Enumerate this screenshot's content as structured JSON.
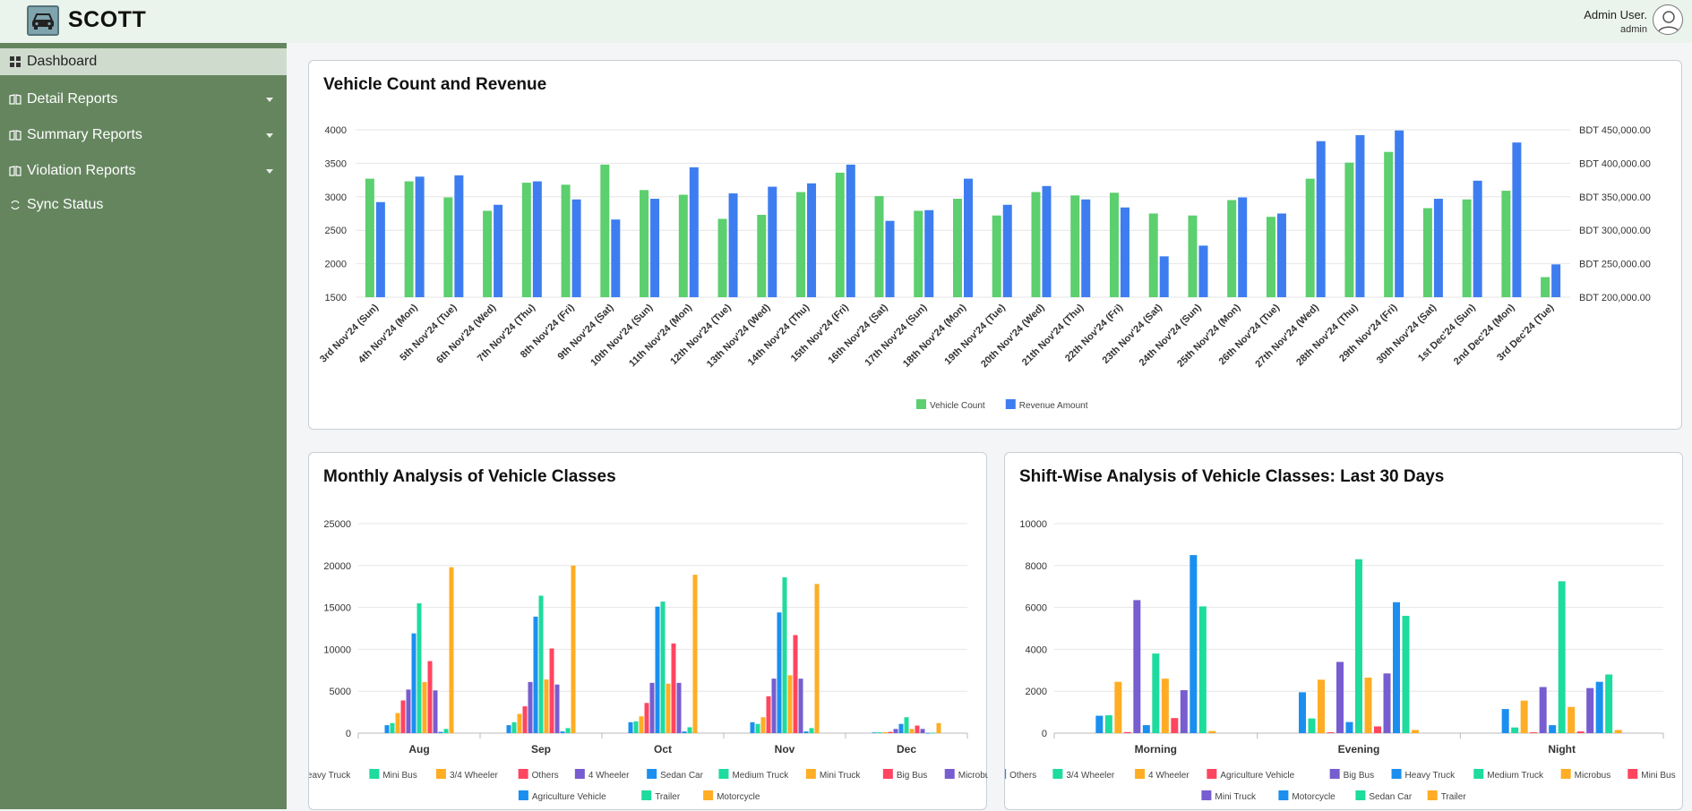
{
  "app": {
    "brand": "SCOTT"
  },
  "user": {
    "name": "Admin User.",
    "role": "admin"
  },
  "sidebar": {
    "items": [
      {
        "label": "Dashboard",
        "icon": "dashboard-icon",
        "active": true
      },
      {
        "label": "Detail Reports",
        "icon": "book-icon",
        "expandable": true
      },
      {
        "label": "Summary Reports",
        "icon": "book-icon",
        "expandable": true
      },
      {
        "label": "Violation Reports",
        "icon": "book-icon",
        "expandable": true
      },
      {
        "label": "Sync Status",
        "icon": "sync-icon"
      }
    ]
  },
  "charts": {
    "revenue": {
      "title": "Vehicle Count and Revenue"
    },
    "monthly": {
      "title": "Monthly Analysis of Vehicle Classes"
    },
    "shift": {
      "title": "Shift-Wise Analysis of Vehicle Classes: Last 30 Days"
    }
  },
  "chart_data": [
    {
      "type": "bar",
      "title": "Vehicle Count and Revenue",
      "categories": [
        "3rd Nov'24 (Sun)",
        "4th Nov'24 (Mon)",
        "5th Nov'24 (Tue)",
        "6th Nov'24 (Wed)",
        "7th Nov'24 (Thu)",
        "8th Nov'24 (Fri)",
        "9th Nov'24 (Sat)",
        "10th Nov'24 (Sun)",
        "11th Nov'24 (Mon)",
        "12th Nov'24 (Tue)",
        "13th Nov'24 (Wed)",
        "14th Nov'24 (Thu)",
        "15th Nov'24 (Fri)",
        "16th Nov'24 (Sat)",
        "17th Nov'24 (Sun)",
        "18th Nov'24 (Mon)",
        "19th Nov'24 (Tue)",
        "20th Nov'24 (Wed)",
        "21th Nov'24 (Thu)",
        "22th Nov'24 (Fri)",
        "23th Nov'24 (Sat)",
        "24th Nov'24 (Sun)",
        "25th Nov'24 (Mon)",
        "26th Nov'24 (Tue)",
        "27th Nov'24 (Wed)",
        "28th Nov'24 (Thu)",
        "29th Nov'24 (Fri)",
        "30th Nov'24 (Sat)",
        "1st Dec'24 (Sun)",
        "2nd Dec'24 (Mon)",
        "3rd Dec'24 (Tue)"
      ],
      "series": [
        {
          "name": "Vehicle Count",
          "axis": "left",
          "color": "#5ccf6e",
          "values": [
            3270,
            3230,
            2990,
            2790,
            3210,
            3180,
            3480,
            3100,
            3030,
            2670,
            2730,
            3070,
            3360,
            3010,
            2790,
            2970,
            2720,
            3070,
            3020,
            3060,
            2750,
            2720,
            2950,
            2700,
            3270,
            3510,
            3670,
            2830,
            2960,
            3090,
            1800
          ]
        },
        {
          "name": "Revenue Amount",
          "axis": "right",
          "color": "#3d7df0",
          "values": [
            342000,
            380000,
            382000,
            338000,
            373000,
            346000,
            316000,
            347000,
            394000,
            355000,
            365000,
            370000,
            398000,
            314000,
            330000,
            377000,
            338000,
            366000,
            346000,
            334000,
            261000,
            277000,
            349000,
            325000,
            433000,
            442000,
            449000,
            347000,
            374000,
            431000,
            249000
          ]
        }
      ],
      "y_left": {
        "min": 1500,
        "max": 4000,
        "ticks": [
          1500,
          2000,
          2500,
          3000,
          3500,
          4000
        ]
      },
      "y_right": {
        "min": 200000,
        "max": 450000,
        "ticks": [
          "BDT 200,000.00",
          "BDT 250,000.00",
          "BDT 300,000.00",
          "BDT 350,000.00",
          "BDT 400,000.00",
          "BDT 450,000.00"
        ]
      },
      "legend": "bottom"
    },
    {
      "type": "bar",
      "title": "Monthly Analysis of Vehicle Classes",
      "categories": [
        "Aug",
        "Sep",
        "Oct",
        "Nov",
        "Dec"
      ],
      "ylim": [
        0,
        25000
      ],
      "ticks": [
        0,
        5000,
        10000,
        15000,
        20000,
        25000
      ],
      "series": [
        {
          "name": "Heavy Truck",
          "color": "#1b8ff0",
          "values": [
            950,
            950,
            1300,
            1300,
            80
          ]
        },
        {
          "name": "Mini Bus",
          "color": "#1edb9e",
          "values": [
            1200,
            1300,
            1400,
            1100,
            100
          ]
        },
        {
          "name": "3/4 Wheeler",
          "color": "#ffad24",
          "values": [
            2400,
            2300,
            2000,
            1900,
            120
          ]
        },
        {
          "name": "Others",
          "color": "#ff4560",
          "values": [
            3900,
            3200,
            3600,
            4400,
            150
          ]
        },
        {
          "name": "4 Wheeler",
          "color": "#775dd0",
          "values": [
            5200,
            6100,
            6000,
            6500,
            500
          ]
        },
        {
          "name": "Sedan Car",
          "color": "#1b8ff0",
          "values": [
            11900,
            13900,
            15100,
            14400,
            1100
          ]
        },
        {
          "name": "Medium Truck",
          "color": "#1edb9e",
          "values": [
            15500,
            16400,
            15700,
            18600,
            1900
          ]
        },
        {
          "name": "Mini Truck",
          "color": "#ffad24",
          "values": [
            6100,
            6400,
            5900,
            6900,
            500
          ]
        },
        {
          "name": "Big Bus",
          "color": "#ff4560",
          "values": [
            8600,
            10100,
            10700,
            11700,
            900
          ]
        },
        {
          "name": "Microbus",
          "color": "#775dd0",
          "values": [
            5100,
            5800,
            6000,
            6500,
            500
          ]
        },
        {
          "name": "Agriculture Vehicle",
          "color": "#1b8ff0",
          "values": [
            150,
            200,
            200,
            200,
            30
          ]
        },
        {
          "name": "Trailer",
          "color": "#1edb9e",
          "values": [
            500,
            600,
            700,
            600,
            50
          ]
        },
        {
          "name": "Motorcycle",
          "color": "#ffad24",
          "values": [
            19800,
            20000,
            18900,
            17800,
            1200
          ]
        }
      ],
      "legend": "bottom"
    },
    {
      "type": "bar",
      "title": "Shift-Wise Analysis of Vehicle Classes: Last 30 Days",
      "categories": [
        "Morning",
        "Evening",
        "Night"
      ],
      "ylim": [
        0,
        10000
      ],
      "ticks": [
        0,
        2000,
        4000,
        6000,
        8000,
        10000
      ],
      "series": [
        {
          "name": "Others",
          "color": "#1b8ff0",
          "values": [
            830,
            1950,
            1150
          ]
        },
        {
          "name": "3/4 Wheeler",
          "color": "#1edb9e",
          "values": [
            850,
            700,
            270
          ]
        },
        {
          "name": "4 Wheeler",
          "color": "#ffad24",
          "values": [
            2450,
            2550,
            1550
          ]
        },
        {
          "name": "Agriculture Vehicle",
          "color": "#ff4560",
          "values": [
            50,
            40,
            40
          ]
        },
        {
          "name": "Big Bus",
          "color": "#775dd0",
          "values": [
            6350,
            3400,
            2200
          ]
        },
        {
          "name": "Heavy Truck",
          "color": "#1b8ff0",
          "values": [
            380,
            530,
            380
          ]
        },
        {
          "name": "Medium Truck",
          "color": "#1edb9e",
          "values": [
            3800,
            8300,
            7250
          ]
        },
        {
          "name": "Microbus",
          "color": "#ffad24",
          "values": [
            2600,
            2650,
            1250
          ]
        },
        {
          "name": "Mini Bus",
          "color": "#ff4560",
          "values": [
            720,
            320,
            80
          ]
        },
        {
          "name": "Mini Truck",
          "color": "#775dd0",
          "values": [
            2050,
            2850,
            2150
          ]
        },
        {
          "name": "Motorcycle",
          "color": "#1b8ff0",
          "values": [
            8500,
            6250,
            2450
          ]
        },
        {
          "name": "Sedan Car",
          "color": "#1edb9e",
          "values": [
            6050,
            5600,
            2800
          ]
        },
        {
          "name": "Trailer",
          "color": "#ffad24",
          "values": [
            100,
            150,
            150
          ]
        }
      ],
      "legend": "bottom"
    }
  ]
}
